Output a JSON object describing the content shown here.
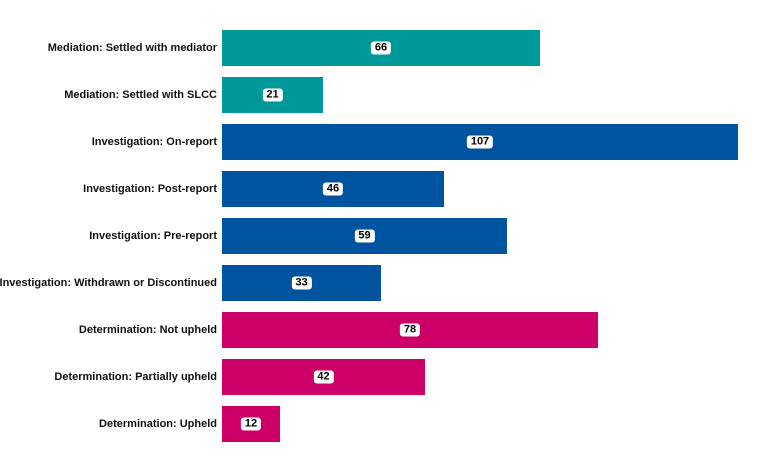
{
  "chart_data": {
    "type": "bar",
    "orientation": "horizontal",
    "title": "",
    "xlabel": "",
    "ylabel": "",
    "grid": false,
    "legend": null,
    "categories": [
      "Mediation: Settled with mediator",
      "Mediation: Settled with SLCC",
      "Investigation: On-report",
      "Investigation: Post-report",
      "Investigation: Pre-report",
      "Investigation: Withdrawn or Discontinued",
      "Determination: Not upheld",
      "Determination: Partially upheld",
      "Determination: Upheld"
    ],
    "values": [
      66,
      21,
      107,
      46,
      59,
      33,
      78,
      42,
      12
    ],
    "groups": [
      "Mediation",
      "Mediation",
      "Investigation",
      "Investigation",
      "Investigation",
      "Investigation",
      "Determination",
      "Determination",
      "Determination"
    ],
    "group_colors": {
      "Mediation": "#009999",
      "Investigation": "#00539F",
      "Determination": "#CC0066"
    },
    "xlim": [
      0,
      107
    ]
  }
}
